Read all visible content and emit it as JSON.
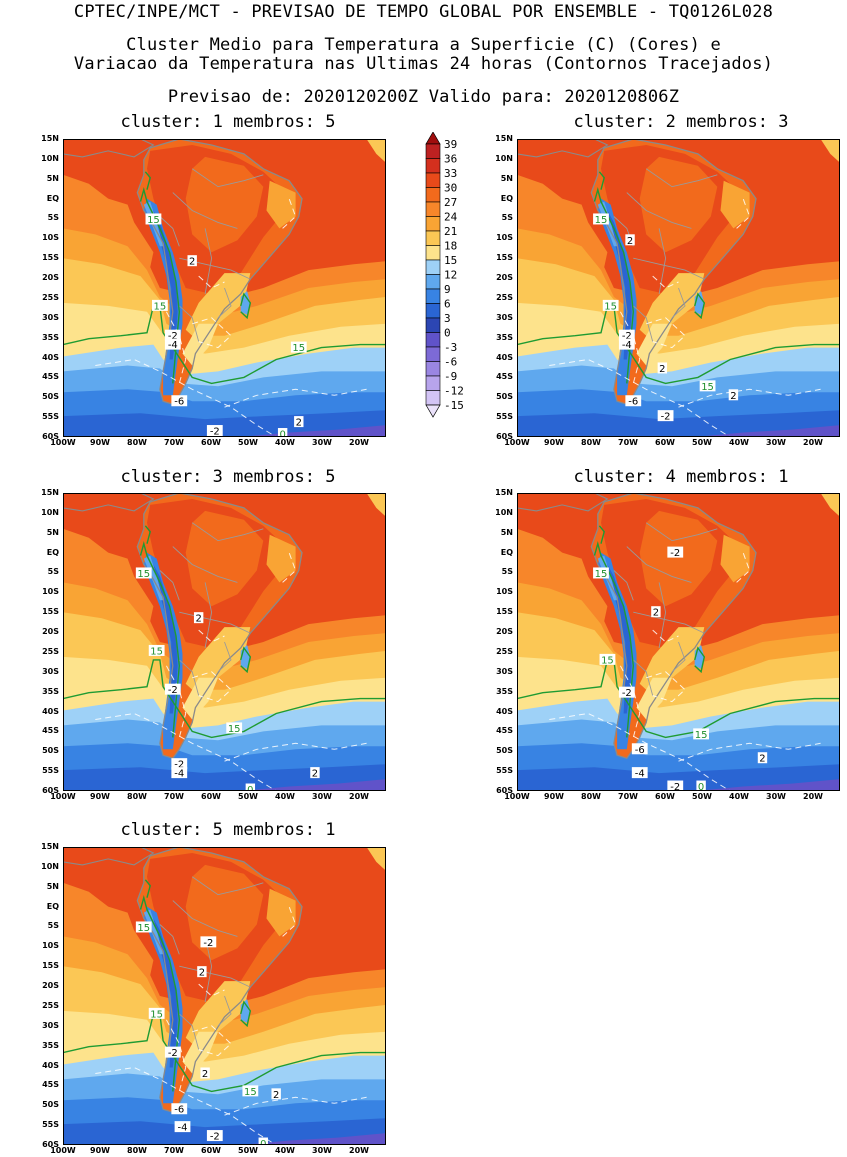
{
  "header": {
    "line1": "CPTEC/INPE/MCT - PREVISAO DE TEMPO GLOBAL POR ENSEMBLE - TQ0126L028",
    "line2": "Cluster Medio para Temperatura a Superficie (C) (Cores) e",
    "line3": "Variacao da Temperatura nas Ultimas 24 horas (Contornos Tracejados)",
    "line4": "Previsao de: 2020120200Z   Valido para: 2020120806Z"
  },
  "axes": {
    "lat_labels": [
      "15N",
      "10N",
      "5N",
      "EQ",
      "5S",
      "10S",
      "15S",
      "20S",
      "25S",
      "30S",
      "35S",
      "40S",
      "45S",
      "50S",
      "55S",
      "60S"
    ],
    "lon_labels": [
      "100W",
      "90W",
      "80W",
      "70W",
      "60W",
      "50W",
      "40W",
      "30W",
      "20W"
    ]
  },
  "colorbar": {
    "labels": [
      "39",
      "36",
      "33",
      "30",
      "27",
      "24",
      "21",
      "18",
      "15",
      "12",
      "9",
      "6",
      "3",
      "0",
      "-3",
      "-6",
      "-9",
      "-12",
      "-15"
    ],
    "colors": [
      "#a00d0d",
      "#bd2121",
      "#d4301e",
      "#e84a1a",
      "#f26a1c",
      "#f7862a",
      "#f9a434",
      "#fbc755",
      "#fde38c",
      "#9ed1f7",
      "#5fa8ee",
      "#3883e3",
      "#2a65d3",
      "#2c46b3",
      "#6053c9",
      "#7d6ad6",
      "#9a86e2",
      "#b7a4ec",
      "#d3c4f5",
      "#ebe2fb"
    ]
  },
  "panels": [
    {
      "title": "cluster: 1   membros: 5",
      "contour_labels": [
        {
          "text": "15",
          "kind": "iso15"
        },
        {
          "text": "2",
          "kind": "dash"
        },
        {
          "text": "15",
          "kind": "iso15"
        },
        {
          "text": "-2",
          "kind": "dash"
        },
        {
          "text": "-4",
          "kind": "dash"
        },
        {
          "text": "15",
          "kind": "iso15"
        },
        {
          "text": "-6",
          "kind": "dash"
        },
        {
          "text": "2",
          "kind": "dash"
        },
        {
          "text": "-2",
          "kind": "dash"
        },
        {
          "text": "0",
          "kind": "iso15"
        }
      ]
    },
    {
      "title": "cluster: 2   membros: 3",
      "contour_labels": [
        {
          "text": "15",
          "kind": "iso15"
        },
        {
          "text": "2",
          "kind": "dash"
        },
        {
          "text": "15",
          "kind": "iso15"
        },
        {
          "text": "-2",
          "kind": "dash"
        },
        {
          "text": "-4",
          "kind": "dash"
        },
        {
          "text": "2",
          "kind": "dash"
        },
        {
          "text": "15",
          "kind": "iso15"
        },
        {
          "text": "2",
          "kind": "dash"
        },
        {
          "text": "-6",
          "kind": "dash"
        },
        {
          "text": "-2",
          "kind": "dash"
        }
      ]
    },
    {
      "title": "cluster: 3   membros: 5",
      "contour_labels": [
        {
          "text": "15",
          "kind": "iso15"
        },
        {
          "text": "2",
          "kind": "dash"
        },
        {
          "text": "15",
          "kind": "iso15"
        },
        {
          "text": "-2",
          "kind": "dash"
        },
        {
          "text": "15",
          "kind": "iso15"
        },
        {
          "text": "-2",
          "kind": "dash"
        },
        {
          "text": "-4",
          "kind": "dash"
        },
        {
          "text": "2",
          "kind": "dash"
        },
        {
          "text": "0",
          "kind": "iso15"
        }
      ]
    },
    {
      "title": "cluster: 4   membros: 1",
      "contour_labels": [
        {
          "text": "-2",
          "kind": "dash"
        },
        {
          "text": "15",
          "kind": "iso15"
        },
        {
          "text": "2",
          "kind": "dash"
        },
        {
          "text": "15",
          "kind": "iso15"
        },
        {
          "text": "-2",
          "kind": "dash"
        },
        {
          "text": "15",
          "kind": "iso15"
        },
        {
          "text": "-6",
          "kind": "dash"
        },
        {
          "text": "2",
          "kind": "dash"
        },
        {
          "text": "-4",
          "kind": "dash"
        },
        {
          "text": "-2",
          "kind": "dash"
        },
        {
          "text": "0",
          "kind": "iso15"
        }
      ]
    },
    {
      "title": "cluster: 5   membros: 1",
      "contour_labels": [
        {
          "text": "15",
          "kind": "iso15"
        },
        {
          "text": "-2",
          "kind": "dash"
        },
        {
          "text": "2",
          "kind": "dash"
        },
        {
          "text": "15",
          "kind": "iso15"
        },
        {
          "text": "-2",
          "kind": "dash"
        },
        {
          "text": "2",
          "kind": "dash"
        },
        {
          "text": "15",
          "kind": "iso15"
        },
        {
          "text": "2",
          "kind": "dash"
        },
        {
          "text": "-6",
          "kind": "dash"
        },
        {
          "text": "-4",
          "kind": "dash"
        },
        {
          "text": "-2",
          "kind": "dash"
        },
        {
          "text": "0",
          "kind": "iso15"
        }
      ]
    }
  ]
}
